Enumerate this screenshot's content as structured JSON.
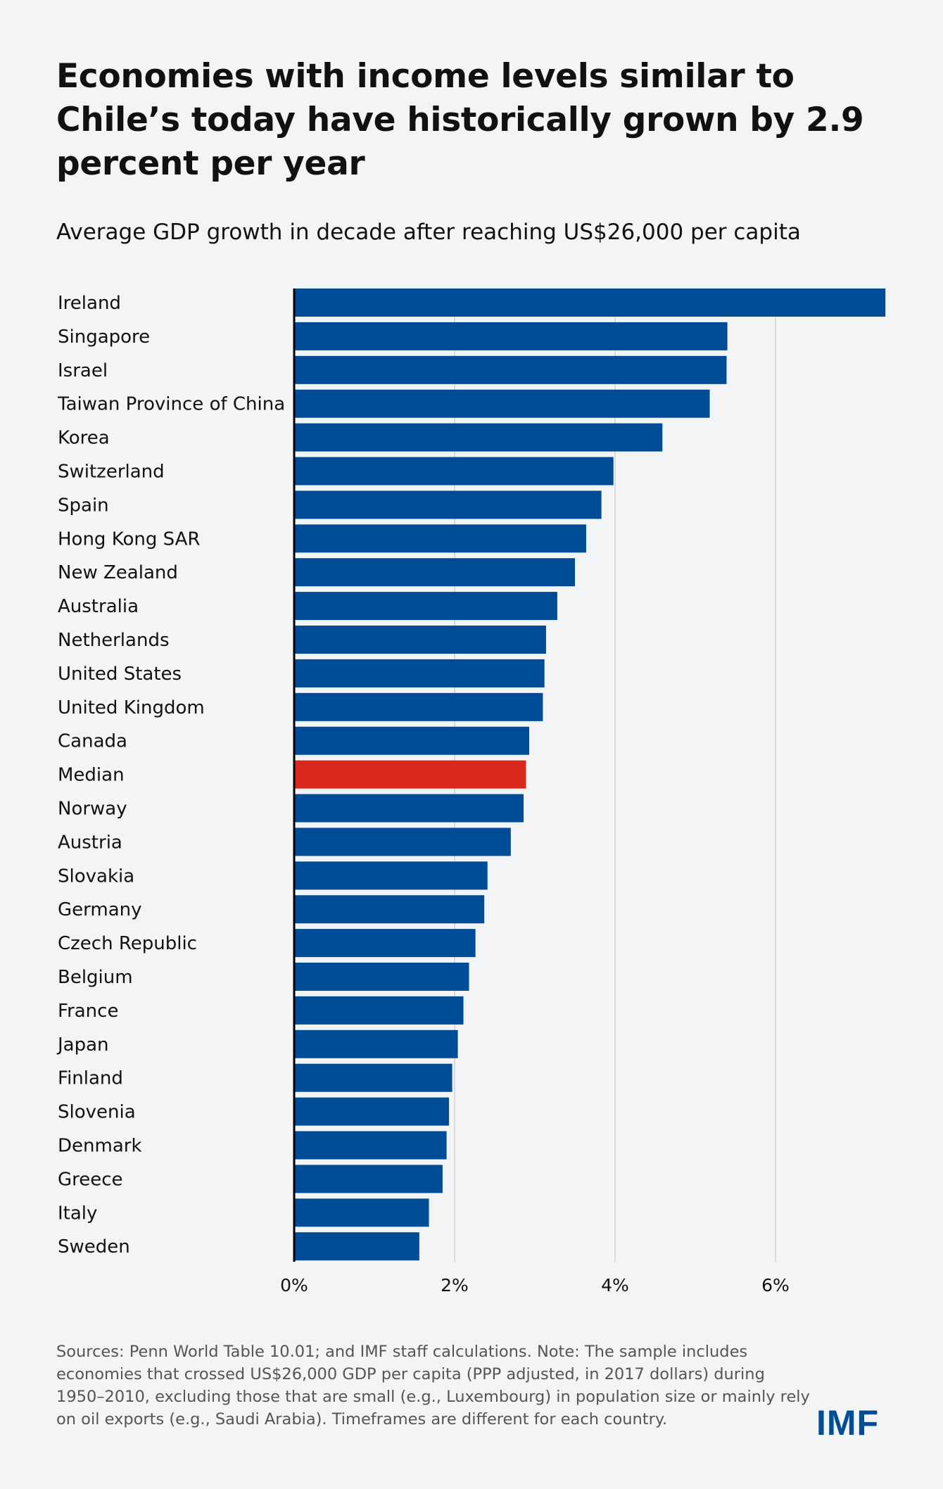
{
  "chart_data": {
    "type": "bar",
    "orientation": "horizontal",
    "title": "Economies with income levels similar to Chile’s today have historically grown by 2.9 percent per year",
    "subtitle": "Average GDP growth in decade after reaching US$26,000 per capita",
    "xlabel": "",
    "ylabel": "",
    "xlim": [
      0,
      7.4
    ],
    "xticks": [
      0,
      2,
      4,
      6
    ],
    "xtick_labels": [
      "0%",
      "2%",
      "4%",
      "6%"
    ],
    "grid": "vertical",
    "categories": [
      "Ireland",
      "Singapore",
      "Israel",
      "Taiwan Province of China",
      "Korea",
      "Switzerland",
      "Spain",
      "Hong Kong SAR",
      "New Zealand",
      "Australia",
      "Netherlands",
      "United States",
      "United Kingdom",
      "Canada",
      "Median",
      "Norway",
      "Austria",
      "Slovakia",
      "Germany",
      "Czech Republic",
      "Belgium",
      "France",
      "Japan",
      "Finland",
      "Slovenia",
      "Denmark",
      "Greece",
      "Italy",
      "Sweden"
    ],
    "values": [
      7.37,
      5.4,
      5.39,
      5.18,
      4.59,
      3.98,
      3.83,
      3.64,
      3.5,
      3.28,
      3.14,
      3.12,
      3.1,
      2.93,
      2.89,
      2.86,
      2.7,
      2.41,
      2.37,
      2.26,
      2.18,
      2.11,
      2.04,
      1.97,
      1.93,
      1.9,
      1.85,
      1.68,
      1.56
    ],
    "colors": {
      "bar": "#004c97",
      "highlight": "#d9281e",
      "highlight_category": "Median",
      "grid": "#d9dadc",
      "axis": "#000000"
    }
  },
  "footnote": "Sources: Penn World Table 10.01; and IMF staff calculations. Note: The sample includes economies that crossed US$26,000 GDP per capita (PPP adjusted, in 2017 dollars) during 1950–2010, excluding those that are small (e.g., Luxembourg) in population size or mainly rely on oil exports (e.g., Saudi Arabia). Timeframes are different for each country.",
  "logo": "IMF"
}
